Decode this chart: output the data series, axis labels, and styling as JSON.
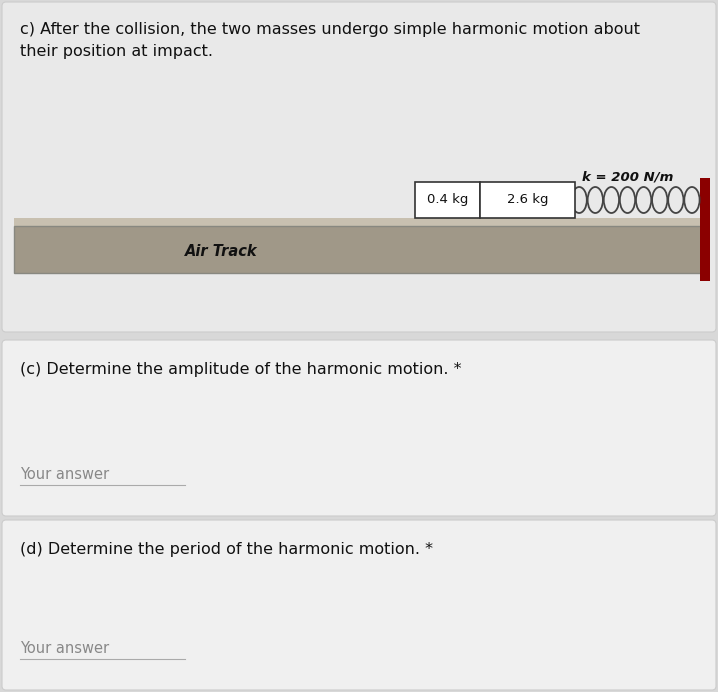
{
  "bg_color": "#d8d8d8",
  "panel1_color": "#e9e9e9",
  "panel2_color": "#f0f0f0",
  "panel3_color": "#f0f0f0",
  "title_text1": "c) After the collision, the two masses undergo simple harmonic motion about",
  "title_text2": "their position at impact.",
  "spring_label": "k = 200 N/m",
  "mass1_label": "0.4 kg",
  "mass2_label": "2.6 kg",
  "track_label": "Air Track",
  "question_c": "(c) Determine the amplitude of the harmonic motion. *",
  "your_answer_c": "Your answer",
  "question_d": "(d) Determine the period of the harmonic motion. *",
  "your_answer_d": "Your answer",
  "track_color_top": "#b0a898",
  "track_color": "#a09888",
  "mass_box_color": "#ffffff",
  "mass_box_edge": "#333333",
  "spring_color": "#444444",
  "wall_color": "#8B0000",
  "panel_edge_color": "#cccccc",
  "gap_color": "#c8c8c8"
}
